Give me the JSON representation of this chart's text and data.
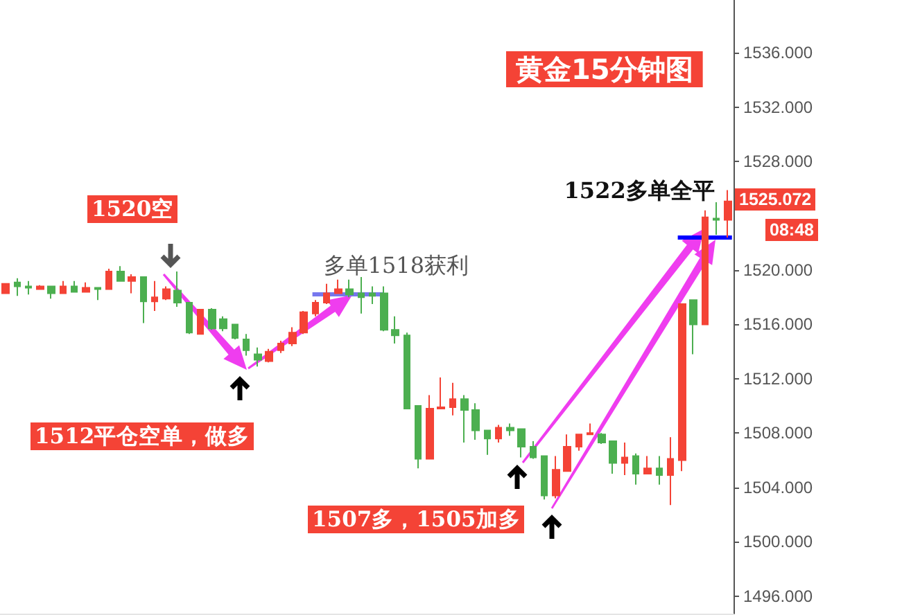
{
  "chart_data": {
    "type": "candlestick",
    "title": "黄金15分钟图",
    "categories": [
      null,
      null,
      null,
      null,
      null,
      null,
      null,
      null,
      null,
      null,
      null,
      null,
      null,
      null,
      null,
      null,
      null,
      null,
      null,
      null,
      null,
      null,
      null,
      null,
      null,
      null,
      null,
      null,
      null,
      null,
      null,
      null,
      null,
      null,
      null,
      null,
      null,
      null,
      null,
      null,
      null,
      null,
      null,
      null,
      null,
      null,
      null,
      null,
      null,
      null,
      null,
      null,
      null,
      null,
      null,
      null,
      null,
      null,
      null,
      null,
      null,
      null,
      null,
      null
    ],
    "ohlc": [
      [
        1518.3,
        1519.0,
        1518.3,
        1519.0
      ],
      [
        1519.1,
        1519.4,
        1518.1,
        1518.8
      ],
      [
        1518.8,
        1519.2,
        1518.2,
        1518.7
      ],
      [
        1518.6,
        1518.9,
        1518.6,
        1518.8
      ],
      [
        1518.8,
        1518.8,
        1517.9,
        1518.3
      ],
      [
        1518.3,
        1519.2,
        1518.3,
        1518.8
      ],
      [
        1518.8,
        1519.2,
        1518.4,
        1518.4
      ],
      [
        1518.4,
        1519.1,
        1518.4,
        1518.7
      ],
      [
        1518.7,
        1518.7,
        1517.8,
        1518.6
      ],
      [
        1518.6,
        1520.1,
        1518.6,
        1519.9
      ],
      [
        1519.9,
        1520.3,
        1519.2,
        1519.2
      ],
      [
        1519.2,
        1519.7,
        1518.3,
        1519.5
      ],
      [
        1519.5,
        1519.5,
        1516.1,
        1517.7
      ],
      [
        1517.7,
        1519.2,
        1517.0,
        1518.0
      ],
      [
        1517.9,
        1518.8,
        1517.8,
        1518.6
      ],
      [
        1518.5,
        1519.9,
        1517.3,
        1517.6
      ],
      [
        1517.6,
        1517.6,
        1515.3,
        1515.4
      ],
      [
        1515.3,
        1517.1,
        1515.3,
        1517.1
      ],
      [
        1517.1,
        1517.2,
        1515.6,
        1515.7
      ],
      [
        1516.4,
        1516.6,
        1515.5,
        1515.7
      ],
      [
        1516.0,
        1516.0,
        1514.9,
        1515.0
      ],
      [
        1514.9,
        1515.3,
        1513.7,
        1514.1
      ],
      [
        1513.8,
        1514.3,
        1512.9,
        1513.4
      ],
      [
        1513.3,
        1514.2,
        1513.2,
        1514.0
      ],
      [
        1514.1,
        1514.8,
        1513.9,
        1514.6
      ],
      [
        1514.6,
        1515.8,
        1514.4,
        1515.4
      ],
      [
        1515.4,
        1517.0,
        1515.3,
        1516.9
      ],
      [
        1516.8,
        1517.8,
        1516.6,
        1517.6
      ],
      [
        1517.6,
        1519.0,
        1517.5,
        1518.3
      ],
      [
        1518.3,
        1519.3,
        1518.3,
        1518.6
      ],
      [
        1518.6,
        1519.3,
        1518.0,
        1518.2
      ],
      [
        1518.3,
        1519.5,
        1516.8,
        1518.0
      ],
      [
        1518.3,
        1518.8,
        1517.5,
        1518.1
      ],
      [
        1518.3,
        1518.8,
        1515.5,
        1515.6
      ],
      [
        1515.6,
        1516.6,
        1514.6,
        1515.2
      ],
      [
        1515.2,
        1515.4,
        1509.8,
        1509.8
      ],
      [
        1510.0,
        1510.0,
        1505.4,
        1506.1
      ],
      [
        1506.1,
        1510.8,
        1506.1,
        1509.8
      ],
      [
        1509.8,
        1512.1,
        1509.8,
        1509.9
      ],
      [
        1509.9,
        1511.7,
        1509.3,
        1510.5
      ],
      [
        1510.5,
        1510.8,
        1507.3,
        1509.7
      ],
      [
        1509.7,
        1510.2,
        1507.5,
        1508.2
      ],
      [
        1508.2,
        1508.2,
        1506.4,
        1507.6
      ],
      [
        1507.6,
        1508.6,
        1507.3,
        1508.4
      ],
      [
        1508.4,
        1508.7,
        1507.8,
        1508.2
      ],
      [
        1508.3,
        1508.3,
        1506.2,
        1507.0
      ],
      [
        1507.0,
        1507.4,
        1506.1,
        1506.2
      ],
      [
        1506.3,
        1506.3,
        1503.1,
        1503.4
      ],
      [
        1503.4,
        1506.3,
        1503.2,
        1505.3
      ],
      [
        1505.2,
        1507.9,
        1505.2,
        1507.0
      ],
      [
        1507.0,
        1507.9,
        1506.7,
        1507.9
      ],
      [
        1507.9,
        1508.7,
        1507.9,
        1508.0
      ],
      [
        1507.9,
        1508.0,
        1507.2,
        1507.3
      ],
      [
        1507.4,
        1507.4,
        1505.0,
        1505.8
      ],
      [
        1505.8,
        1507.3,
        1504.9,
        1506.2
      ],
      [
        1506.3,
        1506.5,
        1504.2,
        1505.0
      ],
      [
        1505.0,
        1506.3,
        1505.0,
        1505.4
      ],
      [
        1505.4,
        1506.3,
        1504.2,
        1504.9
      ],
      [
        1504.9,
        1507.7,
        1502.7,
        1506.1
      ],
      [
        1506.0,
        1517.5,
        1505.2,
        1517.5
      ],
      [
        1517.8,
        1517.8,
        1513.8,
        1516.0
      ],
      [
        1516.0,
        1524.4,
        1516.0,
        1523.9
      ],
      [
        1523.8,
        1525.0,
        1522.6,
        1523.7
      ],
      [
        1523.7,
        1525.9,
        1522.4,
        1525.072
      ]
    ],
    "colors": [
      "#f44336",
      "#4caf50",
      "#4caf50",
      "#f44336",
      "#4caf50",
      "#f44336",
      "#4caf50",
      "#f44336",
      "#4caf50",
      "#f44336",
      "#4caf50",
      "#f44336",
      "#4caf50",
      "#f44336",
      "#f44336",
      "#4caf50",
      "#4caf50",
      "#f44336",
      "#4caf50",
      "#4caf50",
      "#4caf50",
      "#4caf50",
      "#4caf50",
      "#f44336",
      "#f44336",
      "#f44336",
      "#f44336",
      "#f44336",
      "#f44336",
      "#f44336",
      "#4caf50",
      "#4caf50",
      "#4caf50",
      "#4caf50",
      "#4caf50",
      "#4caf50",
      "#4caf50",
      "#f44336",
      "#f44336",
      "#f44336",
      "#4caf50",
      "#4caf50",
      "#4caf50",
      "#f44336",
      "#4caf50",
      "#4caf50",
      "#4caf50",
      "#4caf50",
      "#f44336",
      "#f44336",
      "#f44336",
      "#f44336",
      "#4caf50",
      "#4caf50",
      "#f44336",
      "#4caf50",
      "#f44336",
      "#4caf50",
      "#f44336",
      "#f44336",
      "#4caf50",
      "#f44336",
      "#4caf50",
      "#f44336"
    ],
    "ylim": [
      1494.7,
      1539.9
    ],
    "yticks": [
      {
        "value": 1496,
        "label": "1496.000"
      },
      {
        "value": 1500,
        "label": "1500.000"
      },
      {
        "value": 1504,
        "label": "1504.000"
      },
      {
        "value": 1508,
        "label": "1508.000"
      },
      {
        "value": 1512,
        "label": "1512.000"
      },
      {
        "value": 1516,
        "label": "1516.000"
      },
      {
        "value": 1520,
        "label": "1520.000"
      },
      {
        "value": 1528,
        "label": "1528.000"
      },
      {
        "value": 1532,
        "label": "1532.000"
      },
      {
        "value": 1536,
        "label": "1536.000"
      }
    ],
    "tick_labels": "y",
    "ref_lines": [
      {
        "axis": "y",
        "value": 1518.2,
        "label": "多单1518获利",
        "color": "#7777ee"
      },
      {
        "axis": "y",
        "value": 1522.4,
        "label": "1522多单全平",
        "color": "#0000ff"
      }
    ],
    "annotations": [
      "1520空",
      "1512平仓空单，做多",
      "1507多，1505加多",
      "1525.072",
      "08:48"
    ]
  }
}
